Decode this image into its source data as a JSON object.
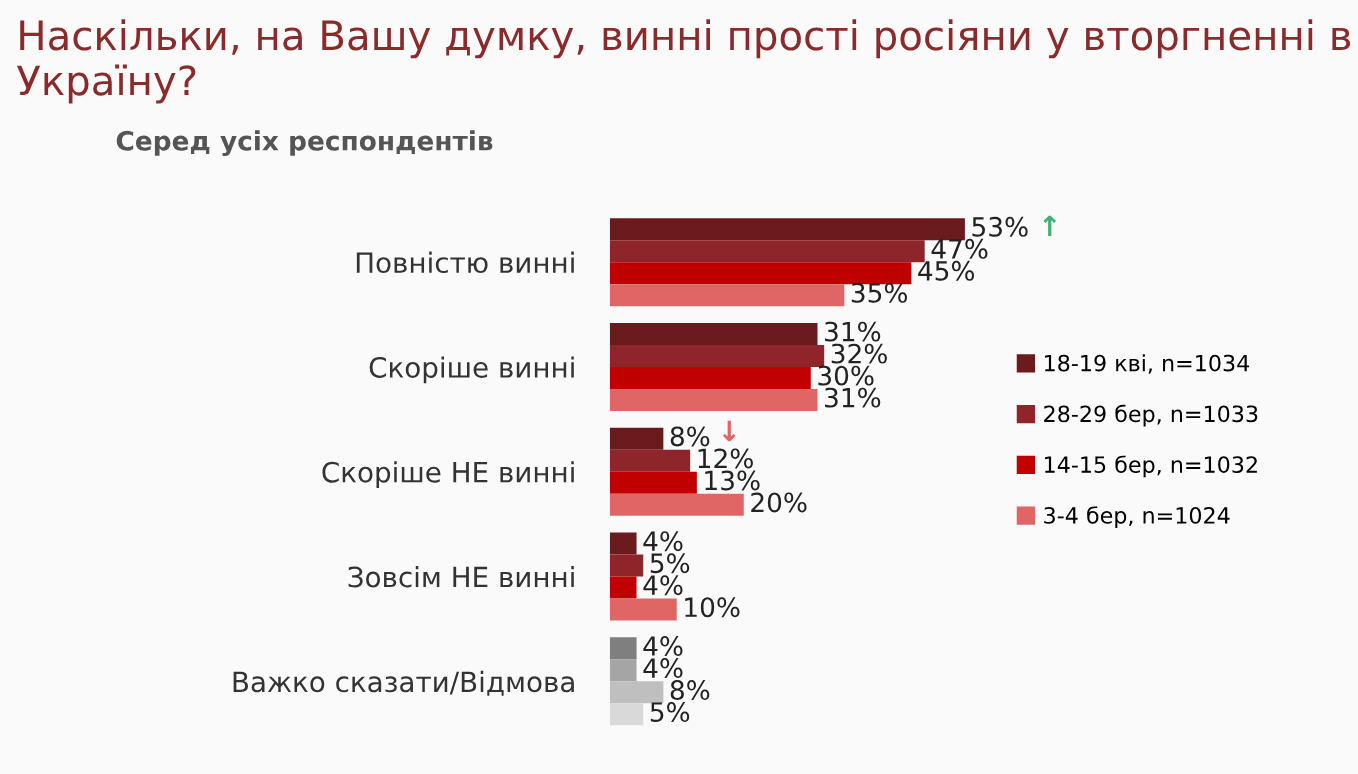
{
  "chart_data": {
    "type": "bar",
    "orientation": "horizontal",
    "title": "Наскільки, на Вашу думку, винні прості росіяни у вторгненні в Україну?",
    "subtitle": "Серед усіх респондентів",
    "categories": [
      "Повністю винні",
      "Скоріше винні",
      "Скоріше НЕ винні",
      "Зовсім НЕ винні",
      "Важко сказати/Відмова"
    ],
    "series": [
      {
        "name": "18-19 кві, n=1034",
        "color": "#6b1a1e",
        "colors": [
          "#6b1a1e",
          "#6b1a1e",
          "#6b1a1e",
          "#6b1a1e",
          "#7f7f7f"
        ],
        "values": [
          53,
          31,
          8,
          4,
          4
        ],
        "value_labels": [
          "53%",
          "31%",
          "8%",
          "4%",
          "4%"
        ]
      },
      {
        "name": "28-29 бер, n=1033",
        "color": "#8e252b",
        "colors": [
          "#8e252b",
          "#8e252b",
          "#8e252b",
          "#8e252b",
          "#a5a5a5"
        ],
        "values": [
          47,
          32,
          12,
          5,
          4
        ],
        "value_labels": [
          "47%",
          "32%",
          "12%",
          "5%",
          "4%"
        ]
      },
      {
        "name": "14-15 бер, n=1032",
        "color": "#c00000",
        "colors": [
          "#c00000",
          "#c00000",
          "#c00000",
          "#c00000",
          "#bfbfbf"
        ],
        "values": [
          45,
          30,
          13,
          4,
          8
        ],
        "value_labels": [
          "45%",
          "30%",
          "13%",
          "4%",
          "8%"
        ]
      },
      {
        "name": "3-4 бер, n=1024",
        "color": "#e06666",
        "colors": [
          "#e06666",
          "#e06666",
          "#e06666",
          "#e06666",
          "#d9d9d9"
        ],
        "values": [
          35,
          31,
          20,
          10,
          5
        ],
        "value_labels": [
          "35%",
          "31%",
          "20%",
          "10%",
          "5%"
        ]
      }
    ],
    "legend": "right",
    "grid": false,
    "tick_labels": "y",
    "annotations": [
      "↑",
      "↓"
    ]
  }
}
